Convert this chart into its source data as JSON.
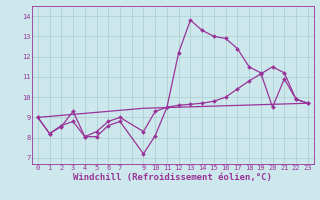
{
  "background_color": "#cce8ec",
  "grid_color": "#aacccc",
  "line_color": "#993399",
  "line_width": 0.9,
  "marker": "D",
  "marker_size": 2.0,
  "xlabel": "Windchill (Refroidissement éolien,°C)",
  "xlabel_fontsize": 6.5,
  "ylabel_ticks": [
    7,
    8,
    9,
    10,
    11,
    12,
    13,
    14
  ],
  "xlim": [
    -0.5,
    23.5
  ],
  "ylim": [
    6.7,
    14.5
  ],
  "xtick_positions": [
    0,
    1,
    2,
    3,
    4,
    5,
    6,
    7,
    8,
    9,
    10,
    11,
    12,
    13,
    14,
    15,
    16,
    17,
    18,
    19,
    20,
    21,
    22,
    23
  ],
  "xtick_labels": [
    "0",
    "1",
    "2",
    "3",
    "4",
    "5",
    "6",
    "7",
    "",
    "9",
    "10",
    "11",
    "12",
    "13",
    "14",
    "15",
    "16",
    "17",
    "18",
    "19",
    "20",
    "21",
    "22",
    "23"
  ],
  "series1_x": [
    0,
    1,
    2,
    3,
    4,
    5,
    6,
    7,
    9,
    10,
    11,
    12,
    13,
    14,
    15,
    16,
    17,
    18,
    19,
    20,
    21,
    22,
    23
  ],
  "series1_y": [
    9.0,
    8.2,
    8.55,
    9.3,
    8.05,
    8.05,
    8.6,
    8.8,
    7.2,
    8.1,
    9.5,
    12.2,
    13.8,
    13.3,
    13.0,
    12.9,
    12.4,
    11.5,
    11.2,
    9.5,
    10.9,
    9.9,
    9.7
  ],
  "series2_x": [
    0,
    1,
    2,
    3,
    4,
    5,
    6,
    7,
    9,
    10,
    11,
    12,
    13,
    14,
    15,
    16,
    17,
    18,
    19,
    20,
    21,
    22,
    23
  ],
  "series2_y": [
    9.0,
    8.2,
    8.6,
    8.8,
    8.05,
    8.3,
    8.8,
    9.0,
    8.3,
    9.3,
    9.5,
    9.6,
    9.65,
    9.7,
    9.8,
    10.0,
    10.4,
    10.8,
    11.15,
    11.5,
    11.2,
    9.9,
    9.7
  ],
  "series3_x": [
    0,
    9,
    23
  ],
  "series3_y": [
    9.0,
    9.45,
    9.7
  ],
  "tick_fontsize": 5.0
}
